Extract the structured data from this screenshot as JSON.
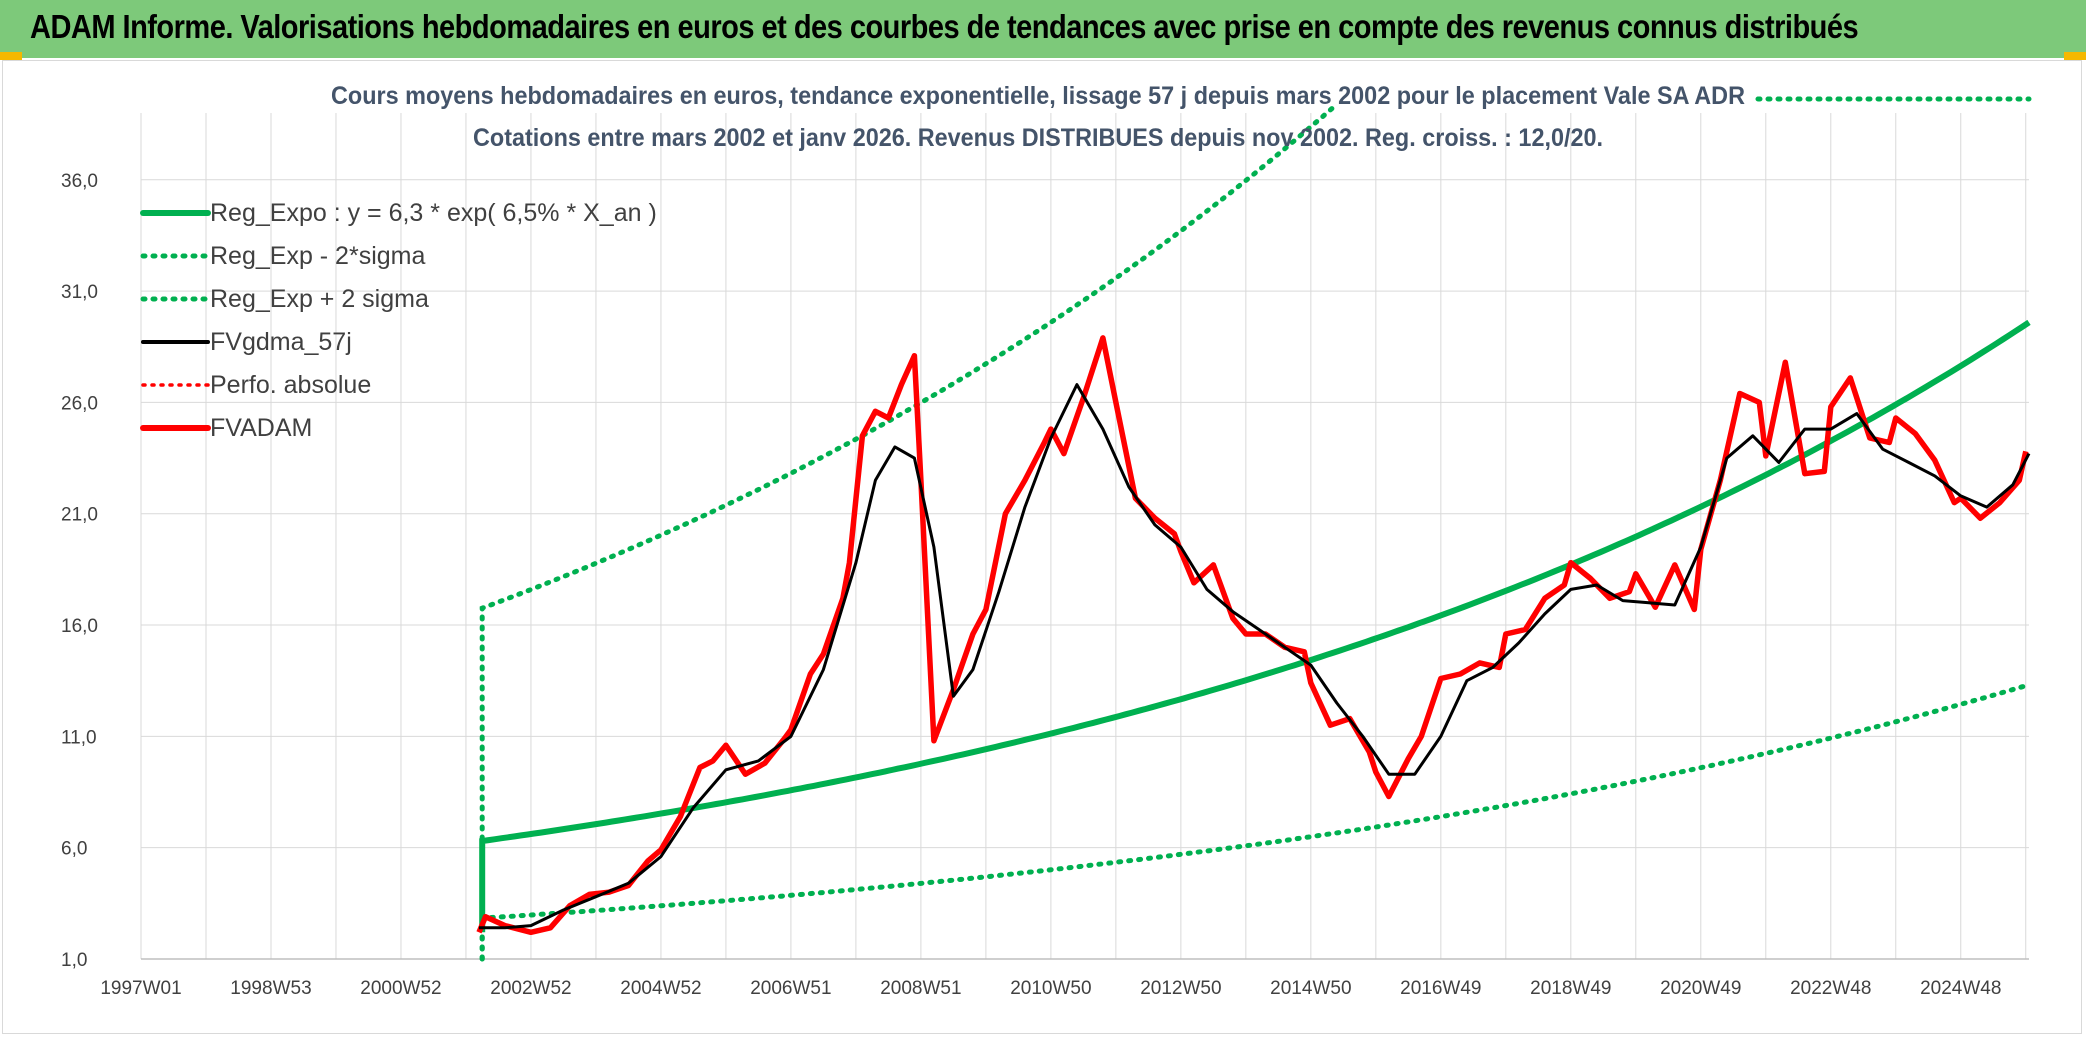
{
  "banner": {
    "title": "ADAM Informe. Valorisations hebdomadaires en euros et des courbes de tendances avec prise en compte des revenus connus distribués"
  },
  "colors": {
    "banner": "#7dc97a",
    "accent": "#f5b800",
    "reg": "#00b050",
    "fvg": "#000000",
    "fvadam": "#ff0000",
    "perfo": "#ff0000",
    "grid": "#d9d9d9"
  },
  "chart_data": {
    "type": "line",
    "title": "Cours moyens hebdomadaires en euros, tendance exponentielle, lissage 57 j depuis mars 2002 pour le placement Vale SA ADR",
    "subtitle": "Cotations entre mars 2002 et janv 2026. Revenus DISTRIBUES depuis nov 2002. Reg. croiss. : 12,0/20.",
    "xlabel": "",
    "ylabel": "",
    "x_range": [
      1997.0,
      2026.05
    ],
    "ylim": [
      1.0,
      39.0
    ],
    "yticks": [
      1,
      6,
      11,
      16,
      21,
      26,
      31,
      36
    ],
    "ytick_labels": [
      "1,0",
      "6,0",
      "11,0",
      "16,0",
      "21,0",
      "26,0",
      "31,0",
      "36,0"
    ],
    "xtick_labels": [
      "1997W01",
      "1998W53",
      "2000W52",
      "2002W52",
      "2004W52",
      "2006W51",
      "2008W51",
      "2010W50",
      "2012W50",
      "2014W50",
      "2016W49",
      "2018W49",
      "2020W49",
      "2022W48",
      "2024W48"
    ],
    "xtick_positions": [
      1997.0,
      1999.0,
      2001.0,
      2003.0,
      2005.0,
      2007.0,
      2009.0,
      2011.0,
      2013.0,
      2015.0,
      2017.0,
      2019.0,
      2021.0,
      2023.0,
      2025.0
    ],
    "legend_position": "top-left",
    "regression": {
      "start": 2002.25,
      "end": 2026.05,
      "a": 6.3,
      "rate_pct": 6.5,
      "sigma_factor_low": 0.45,
      "sigma_factor_high": 2.66
    },
    "series": [
      {
        "name": "Reg_Expo : y = 6,3 * exp( 6,5% *  X_an )",
        "style": "solid-green-thick",
        "formula": "6.3*exp(0.065*(x-2002.25))"
      },
      {
        "name": "Reg_Exp - 2*sigma",
        "style": "dotted-green",
        "formula": "2.84*exp(0.065*(x-2002.25))"
      },
      {
        "name": "Reg_Exp + 2 sigma",
        "style": "dotted-green",
        "formula": "16.8*exp(0.065*(x-2002.25))"
      },
      {
        "name": "FVgdma_57j",
        "style": "solid-black"
      },
      {
        "name": "Perfo. absolue",
        "style": "dotted-red"
      },
      {
        "name": "FVADAM",
        "style": "solid-red-thick"
      }
    ],
    "fvadam": {
      "x": [
        2002.2,
        2002.3,
        2002.6,
        2003.0,
        2003.3,
        2003.6,
        2003.9,
        2004.2,
        2004.5,
        2004.8,
        2005.0,
        2005.3,
        2005.6,
        2005.8,
        2006.0,
        2006.3,
        2006.6,
        2006.9,
        2007.0,
        2007.3,
        2007.5,
        2007.8,
        2007.9,
        2008.1,
        2008.3,
        2008.5,
        2008.7,
        2008.9,
        2009.0,
        2009.2,
        2009.5,
        2009.8,
        2010.0,
        2010.3,
        2010.6,
        2010.9,
        2011.0,
        2011.2,
        2011.5,
        2011.8,
        2012.0,
        2012.3,
        2012.6,
        2012.9,
        2013.0,
        2013.2,
        2013.5,
        2013.8,
        2014.0,
        2014.3,
        2014.6,
        2014.9,
        2015.0,
        2015.3,
        2015.6,
        2015.9,
        2016.0,
        2016.2,
        2016.5,
        2016.7,
        2017.0,
        2017.3,
        2017.6,
        2017.9,
        2018.0,
        2018.3,
        2018.6,
        2018.9,
        2019.0,
        2019.3,
        2019.6,
        2019.9,
        2020.0,
        2020.3,
        2020.6,
        2020.9,
        2021.0,
        2021.3,
        2021.6,
        2021.9,
        2022.0,
        2022.3,
        2022.6,
        2022.9,
        2023.0,
        2023.3,
        2023.6,
        2023.9,
        2024.0,
        2024.3,
        2024.6,
        2024.9,
        2025.0,
        2025.3,
        2025.6,
        2025.9,
        2026.0
      ],
      "y": [
        2.2,
        2.9,
        2.5,
        2.2,
        2.4,
        3.4,
        3.9,
        4.0,
        4.3,
        5.4,
        5.9,
        7.4,
        9.6,
        9.9,
        10.6,
        9.3,
        9.8,
        10.9,
        11.3,
        13.8,
        14.7,
        17.2,
        18.8,
        24.5,
        25.6,
        25.3,
        26.8,
        28.1,
        22.5,
        10.8,
        13.1,
        15.6,
        16.7,
        21.0,
        22.5,
        24.2,
        24.8,
        23.7,
        26.2,
        28.9,
        26.0,
        21.7,
        20.8,
        20.1,
        19.3,
        17.9,
        18.7,
        16.3,
        15.6,
        15.6,
        15.0,
        14.8,
        13.4,
        11.5,
        11.8,
        10.3,
        9.4,
        8.3,
        10.0,
        11.0,
        13.6,
        13.8,
        14.3,
        14.1,
        15.6,
        15.8,
        17.2,
        17.8,
        18.8,
        18.1,
        17.2,
        17.5,
        18.3,
        16.8,
        18.7,
        16.7,
        19.4,
        22.5,
        26.4,
        26.0,
        23.6,
        27.8,
        22.8,
        22.9,
        25.8,
        27.1,
        24.4,
        24.2,
        25.3,
        24.6,
        23.4,
        21.5,
        21.7,
        20.8,
        21.5,
        22.5,
        23.8
      ]
    },
    "fvgdma_57j": {
      "x": [
        2002.2,
        2002.6,
        2003.0,
        2003.5,
        2004.0,
        2004.5,
        2005.0,
        2005.5,
        2006.0,
        2006.5,
        2007.0,
        2007.5,
        2008.0,
        2008.3,
        2008.6,
        2008.9,
        2009.2,
        2009.5,
        2009.8,
        2010.2,
        2010.6,
        2011.0,
        2011.4,
        2011.8,
        2012.2,
        2012.6,
        2013.0,
        2013.4,
        2013.8,
        2014.2,
        2014.6,
        2015.0,
        2015.4,
        2015.8,
        2016.2,
        2016.6,
        2017.0,
        2017.4,
        2017.8,
        2018.2,
        2018.6,
        2019.0,
        2019.4,
        2019.8,
        2020.2,
        2020.6,
        2021.0,
        2021.4,
        2021.8,
        2022.2,
        2022.6,
        2023.0,
        2023.4,
        2023.8,
        2024.2,
        2024.6,
        2025.0,
        2025.4,
        2025.8,
        2026.05
      ],
      "y": [
        2.4,
        2.4,
        2.5,
        3.2,
        3.8,
        4.4,
        5.6,
        7.8,
        9.5,
        9.9,
        11.0,
        14.0,
        18.8,
        22.5,
        24.0,
        23.5,
        19.5,
        12.8,
        14.0,
        17.5,
        21.3,
        24.4,
        26.8,
        24.8,
        22.2,
        20.5,
        19.5,
        17.6,
        16.6,
        15.8,
        15.0,
        14.2,
        12.5,
        11.0,
        9.3,
        9.3,
        11.0,
        13.5,
        14.1,
        15.2,
        16.5,
        17.6,
        17.8,
        17.1,
        17.0,
        16.9,
        19.5,
        23.5,
        24.5,
        23.3,
        24.8,
        24.8,
        25.5,
        23.9,
        23.3,
        22.7,
        21.8,
        21.3,
        22.3,
        23.7
      ]
    }
  }
}
